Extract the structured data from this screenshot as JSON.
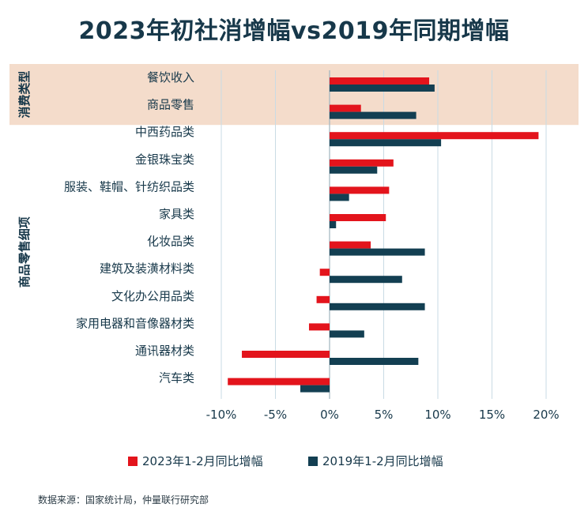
{
  "chart_data": {
    "type": "bar",
    "orientation": "horizontal",
    "title": "2023年初社消增幅vs2019年同期增幅",
    "categories": [
      "餐饮收入",
      "商品零售",
      "中西药品类",
      "金银珠宝类",
      "服装、鞋帽、针纺织品类",
      "家具类",
      "化妆品类",
      "建筑及装潢材料类",
      "文化办公用品类",
      "家用电器和音像器材类",
      "通讯器材类",
      "汽车类"
    ],
    "groups": [
      {
        "label": "消费类型",
        "categories": [
          "餐饮收入",
          "商品零售"
        ],
        "highlight": true
      },
      {
        "label": "商品零售细项",
        "categories": [
          "中西药品类",
          "金银珠宝类",
          "服装、鞋帽、针纺织品类",
          "家具类",
          "化妆品类",
          "建筑及装潢材料类",
          "文化办公用品类",
          "家用电器和音像器材类",
          "通讯器材类",
          "汽车类"
        ],
        "highlight": false
      }
    ],
    "series": [
      {
        "name": "2023年1-2月同比增幅",
        "color": "#e3141c",
        "values": [
          9.2,
          2.9,
          19.3,
          5.9,
          5.5,
          5.2,
          3.8,
          -0.9,
          -1.2,
          -1.9,
          -8.1,
          -9.4
        ]
      },
      {
        "name": "2019年1-2月同比增幅",
        "color": "#133f52",
        "values": [
          9.7,
          8.0,
          10.3,
          4.4,
          1.8,
          0.6,
          8.8,
          6.7,
          8.8,
          3.2,
          8.2,
          -2.7
        ]
      }
    ],
    "xlim": [
      -10,
      20
    ],
    "xticks": [
      -10,
      -5,
      0,
      5,
      10,
      15,
      20
    ],
    "xtick_labels": [
      "-10%",
      "-5%",
      "0%",
      "5%",
      "10%",
      "15%",
      "20%"
    ],
    "grid": true,
    "legend_position": "bottom",
    "highlight_color": "#f4dccb"
  },
  "source": "数据来源：国家统计局，仲量联行研究部"
}
